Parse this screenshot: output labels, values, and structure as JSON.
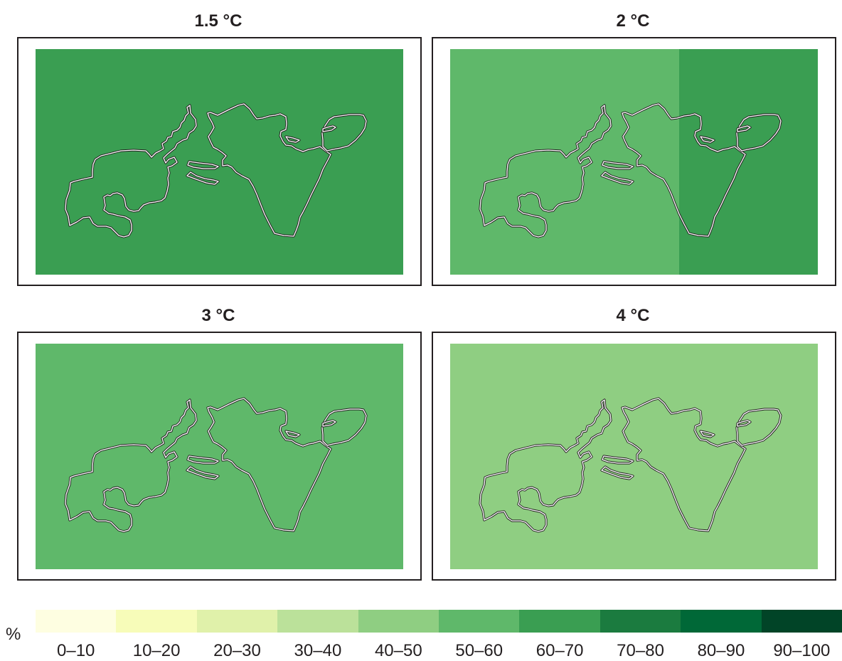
{
  "panels": [
    {
      "title": "1.5 °C",
      "value_classes": [
        "60–70"
      ],
      "fill_colors": [
        "#3a9e52"
      ]
    },
    {
      "title": "2 °C",
      "value_classes": [
        "50–60",
        "60–70"
      ],
      "fill_colors": [
        "#5fb86a",
        "#3a9e52"
      ],
      "split_fraction": 0.623
    },
    {
      "title": "3 °C",
      "value_classes": [
        "50–60"
      ],
      "fill_colors": [
        "#5fb86a"
      ]
    },
    {
      "title": "4 °C",
      "value_classes": [
        "40–50"
      ],
      "fill_colors": [
        "#8fce82"
      ]
    }
  ],
  "legend": {
    "unit": "%",
    "classes": [
      {
        "label": "0–10",
        "color": "#fefee1"
      },
      {
        "label": "10–20",
        "color": "#f7fcb9"
      },
      {
        "label": "20–30",
        "color": "#e0f1aa"
      },
      {
        "label": "30–40",
        "color": "#bbe19a"
      },
      {
        "label": "40–50",
        "color": "#8fce82"
      },
      {
        "label": "50–60",
        "color": "#5fb86a"
      },
      {
        "label": "60–70",
        "color": "#3a9e52"
      },
      {
        "label": "70–80",
        "color": "#1b7b3f"
      },
      {
        "label": "80–90",
        "color": "#006837"
      },
      {
        "label": "90–100",
        "color": "#014427"
      }
    ]
  },
  "outline_stroke_color": "#231f20",
  "outline_halo_color": "#ffffff"
}
